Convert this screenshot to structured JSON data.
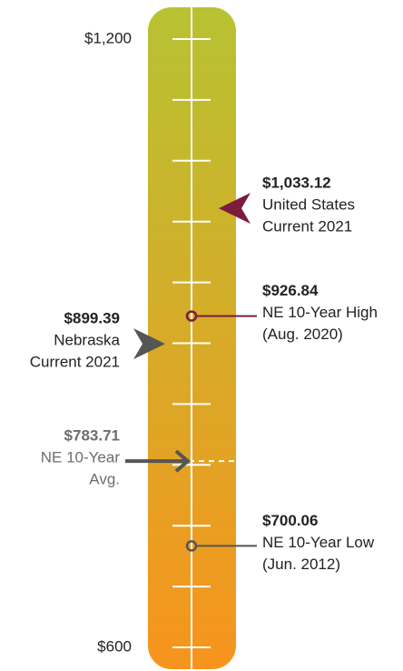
{
  "chart_data": {
    "type": "gauge",
    "ylim": [
      600,
      1200
    ],
    "yticks": [
      {
        "value": 600,
        "label": "$600"
      },
      {
        "value": 1200,
        "label": "$1,200"
      }
    ],
    "minor_ticks": [
      600,
      660,
      720,
      780,
      840,
      900,
      960,
      1020,
      1080,
      1140,
      1200
    ],
    "gradient": [
      "#b7c233",
      "#f7941d"
    ],
    "annotations": [
      {
        "value": 1033.12,
        "value_label": "$1,033.12",
        "lines": [
          "United States",
          "Current 2021"
        ],
        "side": "right",
        "marker": "chevron",
        "color": "#7b1c3c"
      },
      {
        "value": 926.84,
        "value_label": "$926.84",
        "lines": [
          "NE 10-Year High",
          "(Aug. 2020)"
        ],
        "side": "right",
        "marker": "dot",
        "color": "#7b1c3c"
      },
      {
        "value": 899.39,
        "value_label": "$899.39",
        "lines": [
          "Nebraska",
          "Current 2021"
        ],
        "side": "left",
        "marker": "chevron",
        "color": "#555555"
      },
      {
        "value": 783.71,
        "value_label": "$783.71",
        "lines": [
          "NE 10-Year",
          "Avg."
        ],
        "side": "left",
        "marker": "arrow",
        "color": "#555555",
        "text_color": "#6d6e71"
      },
      {
        "value": 700.06,
        "value_label": "$700.06",
        "lines": [
          "NE 10-Year Low",
          "(Jun. 2012)"
        ],
        "side": "right",
        "marker": "dot",
        "color": "#555555"
      }
    ]
  }
}
